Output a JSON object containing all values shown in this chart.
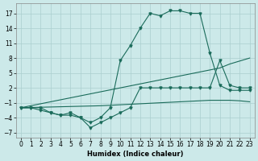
{
  "xlabel": "Humidex (Indice chaleur)",
  "x": [
    0,
    1,
    2,
    3,
    4,
    5,
    6,
    7,
    8,
    9,
    10,
    11,
    12,
    13,
    14,
    15,
    16,
    17,
    18,
    19,
    20,
    21,
    22,
    23
  ],
  "curve_main": [
    -2,
    -2,
    -2,
    -3,
    -3.5,
    -3,
    -4,
    -5,
    -4,
    -2,
    7.5,
    10.5,
    14,
    17,
    16.5,
    17.5,
    17.5,
    17,
    17,
    9,
    2.5,
    1.5,
    1.5,
    1.5
  ],
  "curve_low": [
    -2,
    -2,
    -2.5,
    -3,
    -3.5,
    -3.5,
    -4,
    -6,
    -5,
    -4,
    -3,
    -2,
    2,
    2,
    2,
    2,
    2,
    2,
    2,
    2,
    7.5,
    2.5,
    2,
    2
  ],
  "line_upper": [
    -2,
    -1.6,
    -1.2,
    -0.8,
    -0.4,
    0,
    0.4,
    0.8,
    1.2,
    1.6,
    2.0,
    2.4,
    2.8,
    3.2,
    3.6,
    4.0,
    4.4,
    4.8,
    5.2,
    5.6,
    6.0,
    6.8,
    7.4,
    8.0
  ],
  "line_lower": [
    -2,
    -1.95,
    -1.9,
    -1.85,
    -1.8,
    -1.75,
    -1.7,
    -1.65,
    -1.6,
    -1.5,
    -1.4,
    -1.3,
    -1.2,
    -1.1,
    -1.0,
    -0.9,
    -0.8,
    -0.7,
    -0.6,
    -0.5,
    -0.5,
    -0.5,
    -0.6,
    -0.8
  ],
  "ylim": [
    -8,
    19
  ],
  "xlim": [
    -0.5,
    23.5
  ],
  "yticks": [
    -7,
    -4,
    -1,
    2,
    5,
    8,
    11,
    14,
    17
  ],
  "xticks": [
    0,
    1,
    2,
    3,
    4,
    5,
    6,
    7,
    8,
    9,
    10,
    11,
    12,
    13,
    14,
    15,
    16,
    17,
    18,
    19,
    20,
    21,
    22,
    23
  ],
  "line_color": "#1a6b5a",
  "bg_color": "#cce9e9",
  "grid_color": "#aacfcf"
}
